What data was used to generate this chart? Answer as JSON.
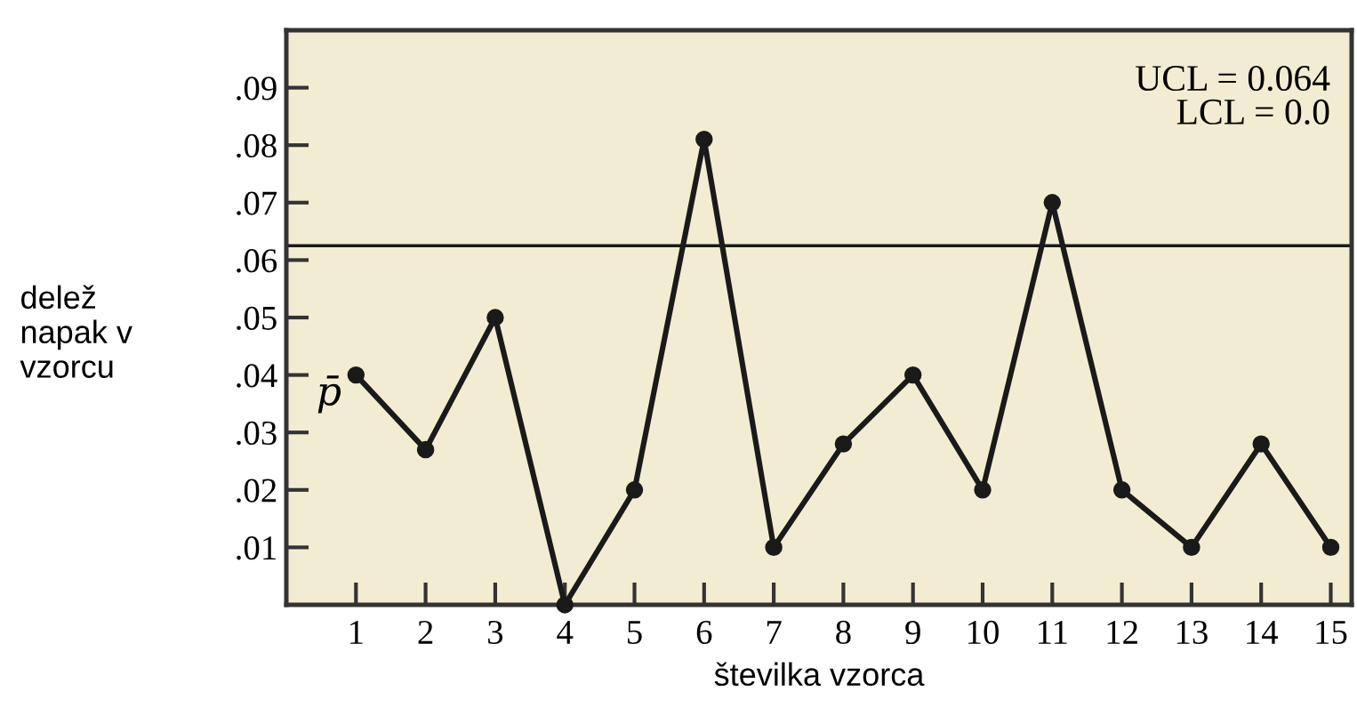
{
  "chart_data": {
    "type": "line",
    "xlabel": "številka vzorca",
    "ylabel": "delež\nnapak v\nvzorcu",
    "x": [
      1,
      2,
      3,
      4,
      5,
      6,
      7,
      8,
      9,
      10,
      11,
      12,
      13,
      14,
      15
    ],
    "series": [
      {
        "color": "#1a1a1a",
        "values": [
          0.04,
          0.027,
          0.05,
          0.0,
          0.02,
          0.081,
          0.01,
          0.028,
          0.04,
          0.02,
          0.07,
          0.02,
          0.01,
          0.028,
          0.01
        ]
      }
    ],
    "marker": "circle",
    "line_style": "solid",
    "xlim": [
      0,
      15.3
    ],
    "xticks": [
      1,
      2,
      3,
      4,
      5,
      6,
      7,
      8,
      9,
      10,
      11,
      12,
      13,
      14,
      15
    ],
    "ylim": [
      0,
      0.1
    ],
    "yticks": [
      {
        "value": 0.01,
        "label": ".01"
      },
      {
        "value": 0.02,
        "label": ".02"
      },
      {
        "value": 0.03,
        "label": ".03"
      },
      {
        "value": 0.04,
        "label": ".04"
      },
      {
        "value": 0.05,
        "label": ".05"
      },
      {
        "value": 0.06,
        "label": ".06"
      },
      {
        "value": 0.07,
        "label": ".07"
      },
      {
        "value": 0.08,
        "label": ".08"
      },
      {
        "value": 0.09,
        "label": ".09"
      }
    ],
    "ref_lines": [
      {
        "axis": "y",
        "value": 0.0625,
        "color": "#1a1a1a",
        "line_style": "solid"
      }
    ],
    "annotations": [
      "p̄",
      "UCL = 0.064\nLCL = 0.0"
    ],
    "grid": false,
    "legend": false
  }
}
